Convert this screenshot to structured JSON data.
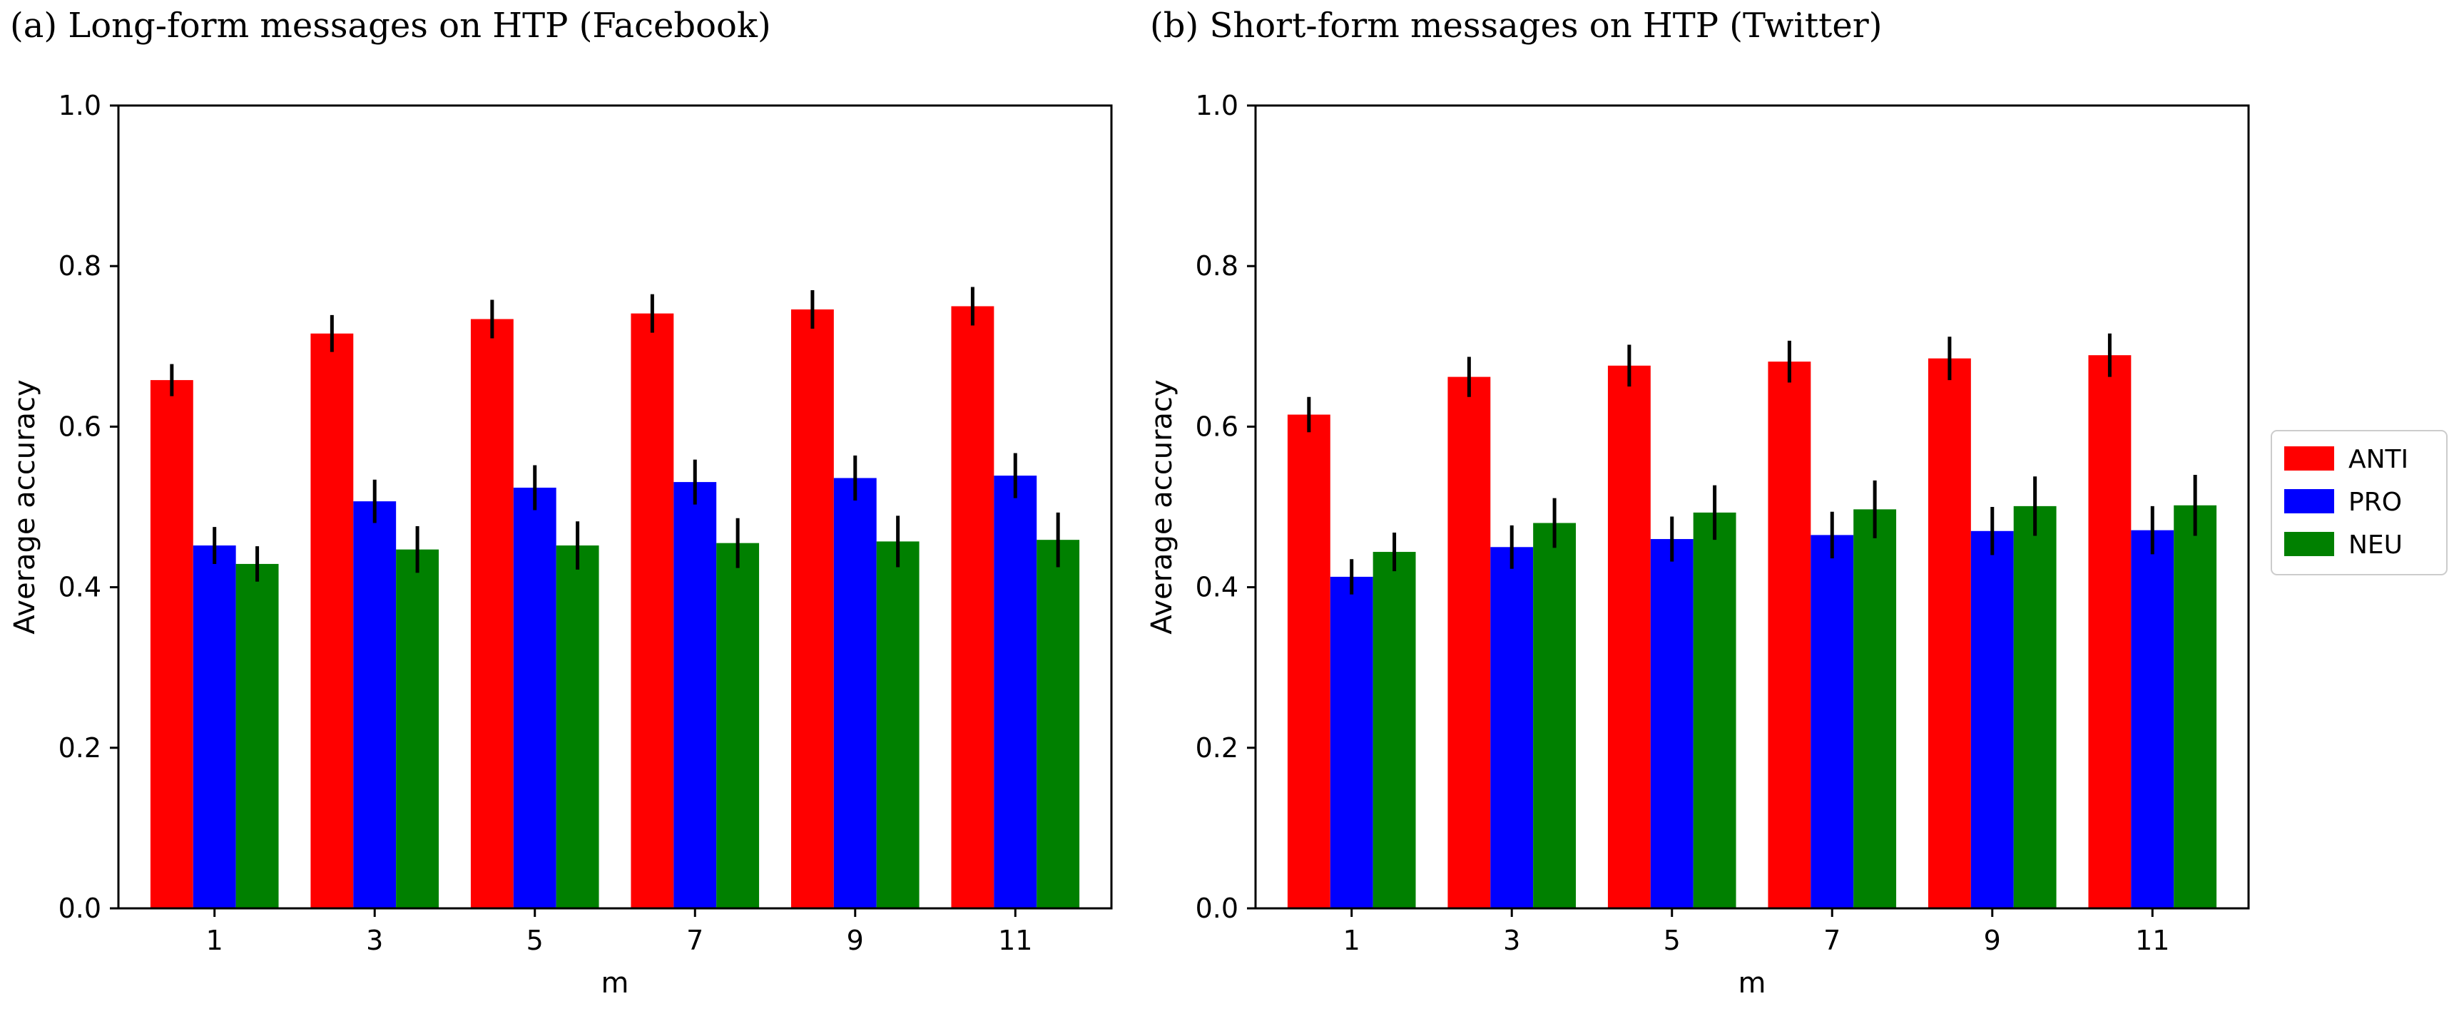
{
  "chart_data": [
    {
      "type": "bar",
      "title": "(a) Long-form messages on HTP (Facebook)",
      "xlabel": "m",
      "ylabel": "Average accuracy",
      "ylim": [
        0,
        1.0
      ],
      "yticks": [
        "0.0",
        "0.2",
        "0.4",
        "0.6",
        "0.8",
        "1.0"
      ],
      "categories": [
        "1",
        "3",
        "5",
        "7",
        "9",
        "11"
      ],
      "series": [
        {
          "name": "ANTI",
          "values": [
            0.658,
            0.716,
            0.734,
            0.741,
            0.746,
            0.75
          ],
          "errors": [
            0.02,
            0.023,
            0.024,
            0.024,
            0.024,
            0.024
          ]
        },
        {
          "name": "PRO",
          "values": [
            0.452,
            0.507,
            0.524,
            0.531,
            0.536,
            0.539
          ],
          "errors": [
            0.023,
            0.027,
            0.028,
            0.028,
            0.028,
            0.028
          ]
        },
        {
          "name": "NEU",
          "values": [
            0.429,
            0.447,
            0.452,
            0.455,
            0.457,
            0.459
          ],
          "errors": [
            0.022,
            0.029,
            0.03,
            0.031,
            0.032,
            0.034
          ]
        }
      ],
      "grid": false
    },
    {
      "type": "bar",
      "title": "(b) Short-form messages on HTP (Twitter)",
      "xlabel": "m",
      "ylabel": "Average accuracy",
      "ylim": [
        0,
        1.0
      ],
      "yticks": [
        "0.0",
        "0.2",
        "0.4",
        "0.6",
        "0.8",
        "1.0"
      ],
      "categories": [
        "1",
        "3",
        "5",
        "7",
        "9",
        "11"
      ],
      "series": [
        {
          "name": "ANTI",
          "values": [
            0.615,
            0.662,
            0.676,
            0.681,
            0.685,
            0.689
          ],
          "errors": [
            0.022,
            0.025,
            0.026,
            0.026,
            0.027,
            0.027
          ]
        },
        {
          "name": "PRO",
          "values": [
            0.413,
            0.45,
            0.46,
            0.465,
            0.47,
            0.471
          ],
          "errors": [
            0.022,
            0.027,
            0.028,
            0.029,
            0.03,
            0.03
          ]
        },
        {
          "name": "NEU",
          "values": [
            0.444,
            0.48,
            0.493,
            0.497,
            0.501,
            0.502
          ],
          "errors": [
            0.024,
            0.031,
            0.034,
            0.036,
            0.037,
            0.038
          ]
        }
      ],
      "grid": false
    }
  ],
  "legend": {
    "placement": "right",
    "items": [
      {
        "label": "ANTI",
        "color": "#ff0000"
      },
      {
        "label": "PRO",
        "color": "#0000ff"
      },
      {
        "label": "NEU",
        "color": "#008000"
      }
    ]
  }
}
